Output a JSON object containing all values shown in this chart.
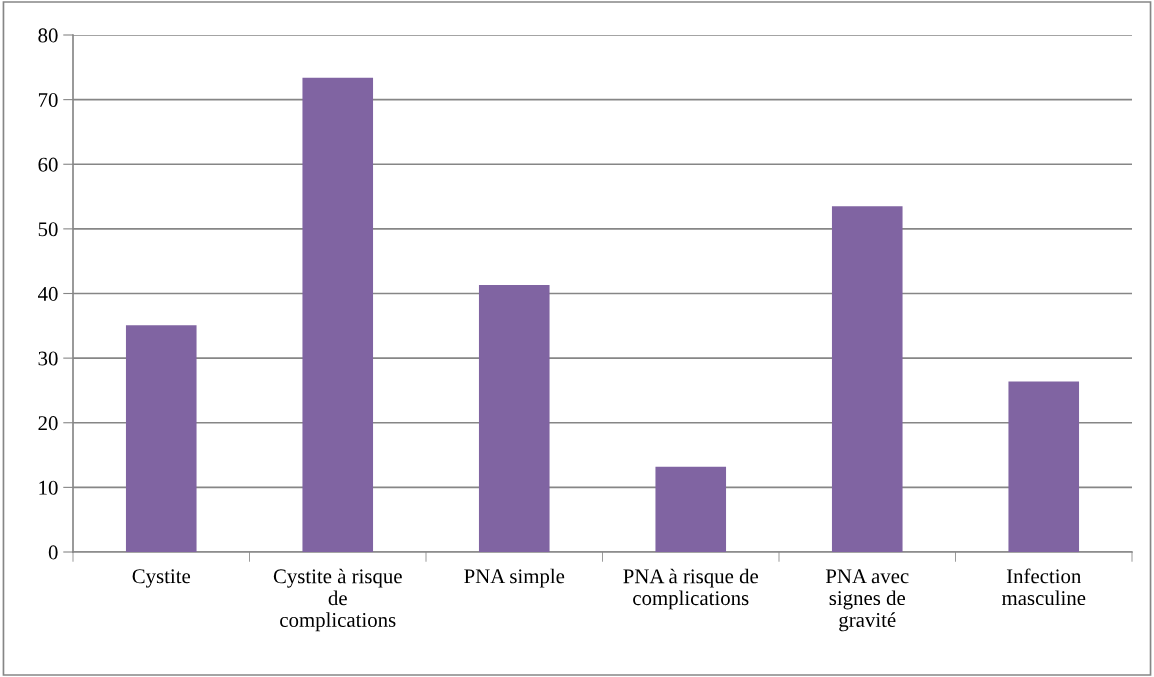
{
  "chart_data": {
    "type": "bar",
    "categories": [
      "Cystite",
      "Cystite à risque\nde\ncomplications",
      "PNA simple",
      "PNA à risque de\ncomplications",
      "PNA avec\nsignes de\ngravité",
      "Infection\nmasculine"
    ],
    "values": [
      35.1,
      73.4,
      41.3,
      13.2,
      53.5,
      26.4
    ],
    "color": "#8064a2",
    "ylim": [
      0,
      80
    ],
    "yticks": [
      0,
      10,
      20,
      30,
      40,
      50,
      60,
      70,
      80
    ],
    "grid": "y"
  }
}
